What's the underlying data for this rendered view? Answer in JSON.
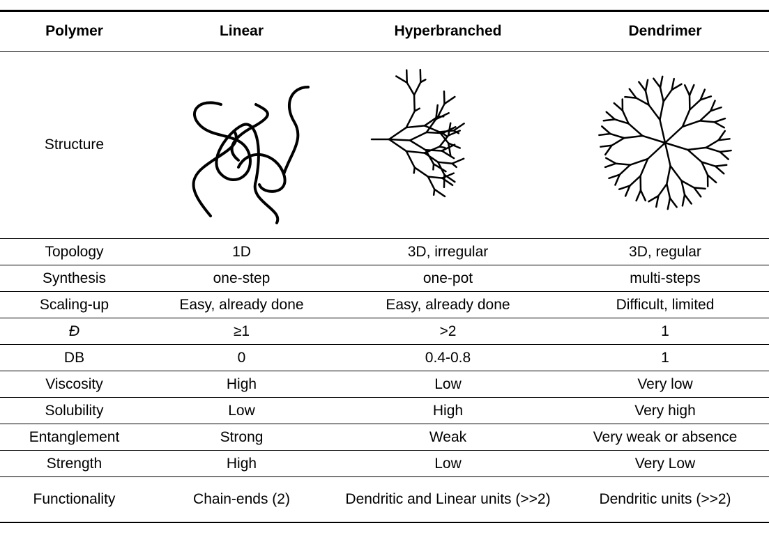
{
  "table": {
    "header": [
      "Polymer",
      "Linear",
      "Hyperbranched",
      "Dendrimer"
    ],
    "rows": [
      [
        "Structure"
      ],
      [
        "Topology",
        "1D",
        "3D, irregular",
        "3D, regular"
      ],
      [
        "Synthesis",
        "one-step",
        "one-pot",
        "multi-steps"
      ],
      [
        "Scaling-up",
        "Easy, already done",
        "Easy, already done",
        "Difficult, limited"
      ],
      [
        "Đ",
        "≥1",
        ">2",
        "1"
      ],
      [
        "DB",
        "0",
        "0.4-0.8",
        "1"
      ],
      [
        "Viscosity",
        "High",
        "Low",
        "Very low"
      ],
      [
        "Solubility",
        "Low",
        "High",
        "Very high"
      ],
      [
        "Entanglement",
        "Strong",
        "Weak",
        "Very weak or absence"
      ],
      [
        "Strength",
        "High",
        "Low",
        "Very Low"
      ],
      [
        "Functionality",
        "Chain-ends (2)",
        "Dendritic and Linear units (>>2)",
        "Dendritic units (>>2)"
      ]
    ]
  }
}
